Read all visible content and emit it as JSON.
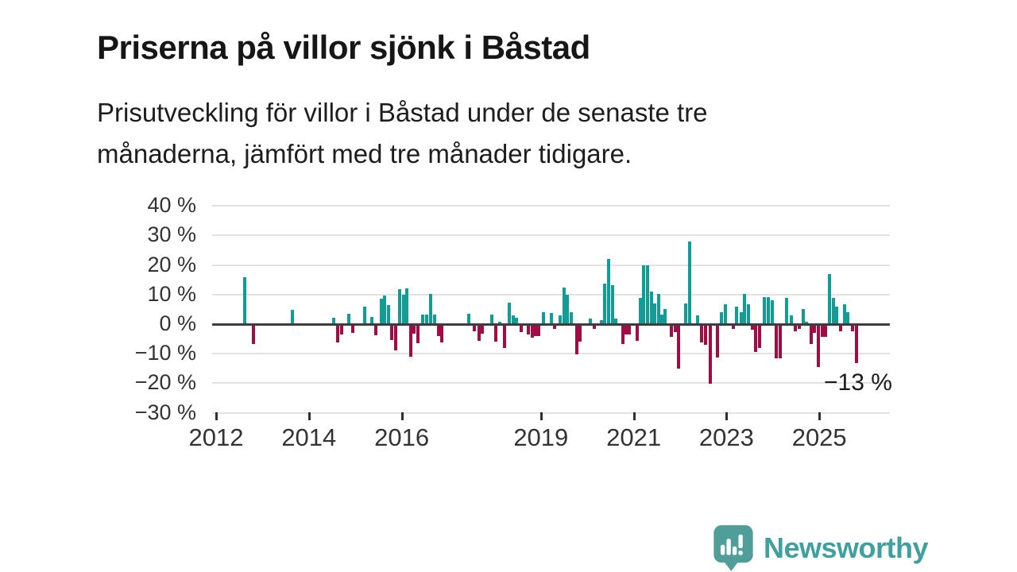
{
  "header": {
    "title": "Priserna på villor sjönk i Båstad",
    "subtitle_lines": [
      "Prisutveckling för villor i Båstad under de senaste tre",
      "månaderna, jämfört med tre månader tidigare."
    ]
  },
  "chart_data": {
    "type": "bar",
    "title": "Priserna på villor sjönk i Båstad",
    "xlabel": "",
    "ylabel": "",
    "grid": true,
    "ylim": [
      -33,
      43
    ],
    "x_range": [
      2011.9,
      2026.5
    ],
    "colors": {
      "positive": "#119d96",
      "negative": "#a20c44",
      "axis": "#3d3d3d",
      "gridline": "#e2e2e2"
    },
    "y_axis": {
      "labels": [
        "40 %",
        "30 %",
        "20 %",
        "10 %",
        "0 %",
        "−10 %",
        "−20 %",
        "−30 %"
      ],
      "values": [
        40,
        30,
        20,
        10,
        0,
        -10,
        -20,
        -30
      ]
    },
    "x_axis": {
      "labels": [
        "2012",
        "2014",
        "2016",
        "2019",
        "2021",
        "2023",
        "2025"
      ],
      "values": [
        2012,
        2014,
        2016,
        2019,
        2021,
        2023,
        2025
      ]
    },
    "annotation": {
      "text": "−13 %",
      "x_year": 2025.1,
      "y_pct": -15.2
    },
    "points": [
      [
        2012.62,
        15.8
      ],
      [
        2012.8,
        -6.4
      ],
      [
        2013.64,
        4.9
      ],
      [
        2014.53,
        2.1
      ],
      [
        2014.62,
        -5.9
      ],
      [
        2014.71,
        -3.2
      ],
      [
        2014.86,
        3.5
      ],
      [
        2014.94,
        -2.7
      ],
      [
        2015.21,
        6.0
      ],
      [
        2015.36,
        2.3
      ],
      [
        2015.44,
        -3.6
      ],
      [
        2015.56,
        8.5
      ],
      [
        2015.63,
        9.7
      ],
      [
        2015.71,
        6.5
      ],
      [
        2015.79,
        -5.0
      ],
      [
        2015.87,
        -8.5
      ],
      [
        2015.96,
        11.9
      ],
      [
        2016.04,
        10.0
      ],
      [
        2016.11,
        12.2
      ],
      [
        2016.19,
        -10.7
      ],
      [
        2016.27,
        -2.9
      ],
      [
        2016.35,
        -6.1
      ],
      [
        2016.45,
        3.3
      ],
      [
        2016.53,
        3.3
      ],
      [
        2016.63,
        10.3
      ],
      [
        2016.71,
        3.3
      ],
      [
        2016.79,
        -3.7
      ],
      [
        2016.87,
        -5.8
      ],
      [
        2017.45,
        3.5
      ],
      [
        2017.57,
        -2.2
      ],
      [
        2017.66,
        -5.5
      ],
      [
        2017.74,
        -3.0
      ],
      [
        2017.95,
        3.2
      ],
      [
        2018.03,
        -5.6
      ],
      [
        2018.12,
        0.8
      ],
      [
        2018.21,
        -7.8
      ],
      [
        2018.32,
        7.2
      ],
      [
        2018.4,
        2.9
      ],
      [
        2018.48,
        2.1
      ],
      [
        2018.57,
        -2.4
      ],
      [
        2018.73,
        -3.2
      ],
      [
        2018.81,
        -4.3
      ],
      [
        2018.88,
        -3.8
      ],
      [
        2018.96,
        -3.8
      ],
      [
        2019.06,
        4.0
      ],
      [
        2019.22,
        3.8
      ],
      [
        2019.3,
        -1.3
      ],
      [
        2019.42,
        2.9
      ],
      [
        2019.5,
        12.3
      ],
      [
        2019.57,
        9.9
      ],
      [
        2019.65,
        4.0
      ],
      [
        2019.77,
        -9.9
      ],
      [
        2019.85,
        -5.6
      ],
      [
        2020.07,
        2.0
      ],
      [
        2020.15,
        -1.4
      ],
      [
        2020.3,
        1.3
      ],
      [
        2020.38,
        13.7
      ],
      [
        2020.46,
        22.0
      ],
      [
        2020.54,
        13.1
      ],
      [
        2020.62,
        1.9
      ],
      [
        2020.76,
        -6.4
      ],
      [
        2020.84,
        -3.2
      ],
      [
        2020.91,
        -3.2
      ],
      [
        2021.07,
        -5.4
      ],
      [
        2021.14,
        8.9
      ],
      [
        2021.22,
        20.0
      ],
      [
        2021.3,
        20.0
      ],
      [
        2021.38,
        11.0
      ],
      [
        2021.45,
        7.0
      ],
      [
        2021.53,
        10.2
      ],
      [
        2021.61,
        3.2
      ],
      [
        2021.68,
        5.1
      ],
      [
        2021.81,
        -4.0
      ],
      [
        2021.89,
        -2.4
      ],
      [
        2021.97,
        -14.7
      ],
      [
        2022.12,
        7.0
      ],
      [
        2022.2,
        28.0
      ],
      [
        2022.38,
        3.0
      ],
      [
        2022.46,
        -5.8
      ],
      [
        2022.54,
        -6.7
      ],
      [
        2022.65,
        -20.0
      ],
      [
        2022.81,
        -11.0
      ],
      [
        2022.89,
        4.0
      ],
      [
        2022.97,
        6.7
      ],
      [
        2023.14,
        -1.4
      ],
      [
        2023.22,
        5.9
      ],
      [
        2023.31,
        4.0
      ],
      [
        2023.39,
        10.2
      ],
      [
        2023.47,
        6.7
      ],
      [
        2023.55,
        -1.6
      ],
      [
        2023.63,
        -9.1
      ],
      [
        2023.71,
        -7.8
      ],
      [
        2023.82,
        9.1
      ],
      [
        2023.9,
        9.1
      ],
      [
        2023.98,
        8.0
      ],
      [
        2024.07,
        -11.3
      ],
      [
        2024.15,
        -11.3
      ],
      [
        2024.3,
        8.9
      ],
      [
        2024.4,
        3.0
      ],
      [
        2024.49,
        -2.2
      ],
      [
        2024.56,
        -1.3
      ],
      [
        2024.65,
        5.1
      ],
      [
        2024.73,
        0.9
      ],
      [
        2024.82,
        -6.4
      ],
      [
        2024.9,
        -2.8
      ],
      [
        2024.98,
        -14.2
      ],
      [
        2025.07,
        -4.0
      ],
      [
        2025.14,
        -4.0
      ],
      [
        2025.22,
        17.0
      ],
      [
        2025.3,
        8.9
      ],
      [
        2025.38,
        5.9
      ],
      [
        2025.46,
        -2.2
      ],
      [
        2025.54,
        6.7
      ],
      [
        2025.62,
        4.0
      ],
      [
        2025.71,
        -2.2
      ],
      [
        2025.8,
        -13.0
      ]
    ]
  },
  "footer": {
    "brand": "Newsworthy",
    "brand_color": "#40a09d",
    "logo_color": "#4f9e9a"
  }
}
